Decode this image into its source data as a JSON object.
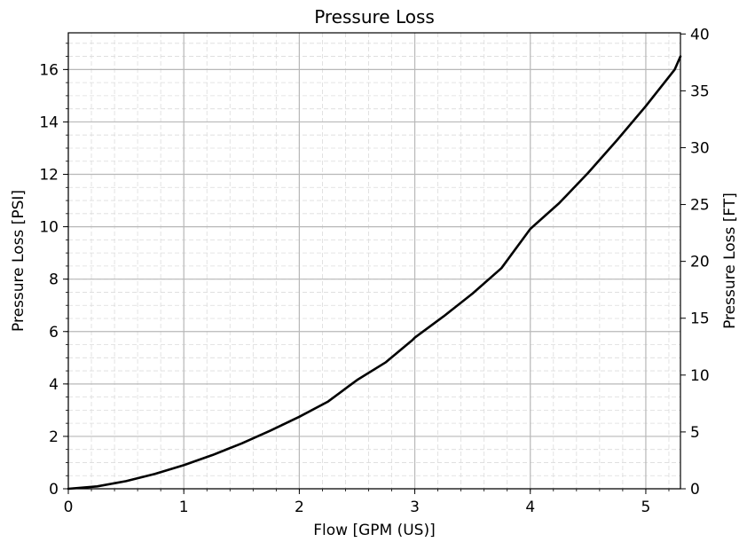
{
  "chart_data": {
    "type": "line",
    "title": "Pressure Loss",
    "xlabel": "Flow [GPM (US)]",
    "ylabel": "Pressure Loss [PSI]",
    "y2label": "Pressure Loss [FT]",
    "xlim": [
      0,
      5.3
    ],
    "ylim": [
      0,
      17.4
    ],
    "y2lim": [
      0,
      40.1
    ],
    "xticks": [
      0,
      1,
      2,
      3,
      4,
      5
    ],
    "yticks": [
      0,
      2,
      4,
      6,
      8,
      10,
      12,
      14,
      16
    ],
    "y2ticks": [
      0,
      5,
      10,
      15,
      20,
      25,
      30,
      35,
      40
    ],
    "grid": true,
    "series": [
      {
        "name": "",
        "color": "#000000",
        "x": [
          0,
          0.25,
          0.5,
          0.75,
          1.0,
          1.25,
          1.5,
          1.75,
          2.0,
          2.25,
          2.42,
          2.5,
          2.75,
          2.98,
          3.0,
          3.25,
          3.5,
          3.75,
          4.0,
          4.25,
          4.5,
          4.75,
          5.0,
          5.25,
          5.3
        ],
        "y": [
          0,
          0.09,
          0.29,
          0.57,
          0.9,
          1.29,
          1.73,
          2.22,
          2.75,
          3.33,
          3.89,
          4.15,
          4.83,
          5.68,
          5.77,
          6.58,
          7.45,
          8.42,
          9.92,
          10.9,
          12.05,
          13.3,
          14.6,
          16.0,
          16.5
        ]
      }
    ]
  }
}
